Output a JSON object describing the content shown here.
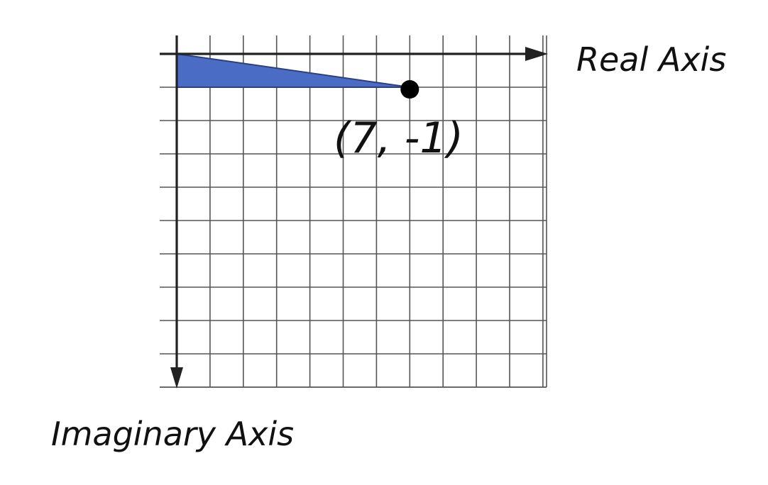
{
  "diagram": {
    "real_axis_label": "Real Axis",
    "imaginary_axis_label": "Imaginary Axis",
    "point_label": "(7, -1)",
    "point": {
      "real": 7,
      "imaginary": -1
    },
    "grid": {
      "real_min": 0,
      "real_max": 11,
      "imag_min": -10,
      "imag_max": 0
    },
    "colors": {
      "triangle_fill": "#4a6cc4",
      "triangle_stroke": "#2e3f7a",
      "grid_line": "#555555",
      "axis": "#222222",
      "point": "#000000"
    }
  }
}
